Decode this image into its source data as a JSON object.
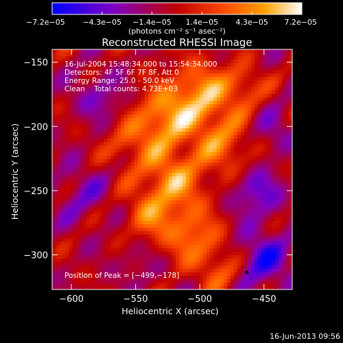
{
  "chart_data": {
    "type": "heatmap",
    "title": "Reconstructed RHESSI Image",
    "xlabel": "Heliocentric X (arcsec)",
    "ylabel": "Heliocentric Y (arcsec)",
    "xlim": [
      -615,
      -428
    ],
    "ylim": [
      -327,
      -140
    ],
    "x_ticks": [
      -600,
      -550,
      -500,
      -450
    ],
    "x_tick_labels": [
      "−600",
      "−550",
      "−500",
      "−450"
    ],
    "y_ticks": [
      -150,
      -200,
      -250,
      -300
    ],
    "y_tick_labels": [
      "−150",
      "−200",
      "−250",
      "−300"
    ],
    "colorbar": {
      "range": [
        -7.2e-05,
        7.2e-05
      ],
      "tick_labels": [
        "−7.2e−05",
        "−4.3e−05",
        "−1.4e−05",
        "1.4e−05",
        "4.3e−05",
        "7.2e−05"
      ],
      "unit_label": "(photons cm⁻² s⁻¹ asec⁻²)",
      "colors": [
        "#0000ff",
        "#8000c0",
        "#c00000",
        "#ff5000",
        "#ffa000",
        "#ffffff"
      ]
    },
    "annotations": {
      "time_range": "16-Jul-2004 15:48:34.000 to 15:54:34.000",
      "detectors": "Detectors: 4F 5F 6F 7F 8F, Att 0",
      "energy_range": "Energy Range: 25.0 - 50.0 keV",
      "method_counts": "Clean    Total counts: 4.73E+03",
      "peak_position": "Position of Peak = [−499,−178]"
    },
    "peak": [
      -499,
      -178
    ],
    "footer_date": "16-Jun-2013 09:56"
  }
}
